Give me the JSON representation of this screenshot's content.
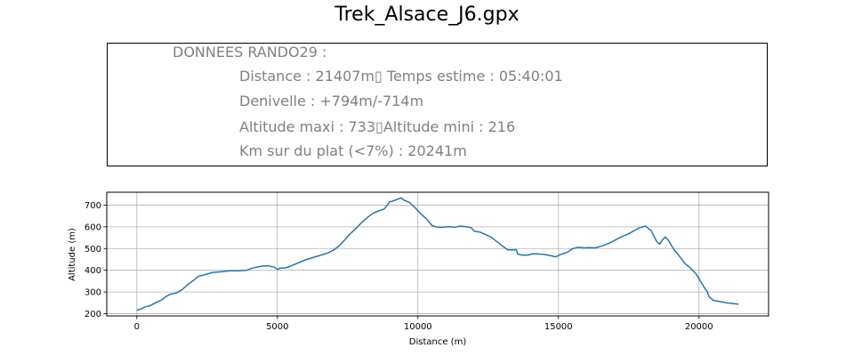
{
  "figure": {
    "title": "Trek_Alsace_J6.gpx"
  },
  "info_box": {
    "header": "DONNEES RANDO29  :",
    "line1": "Distance : 21407m▯ Temps estime : 05:40:01",
    "line2": "Denivelle : +794m/-714m",
    "line3": "Altitude maxi : 733▯Altitude mini : 216",
    "line4": "Km sur du plat (<7%) : 20241m"
  },
  "chart_data": {
    "type": "line",
    "title": "",
    "xlabel": "Distance (m)",
    "ylabel": "Altitude (m)",
    "xlim": [
      -1070,
      22477
    ],
    "ylim": [
      190,
      759
    ],
    "xticks": [
      0,
      5000,
      10000,
      15000,
      20000
    ],
    "yticks": [
      200,
      300,
      400,
      500,
      600,
      700
    ],
    "grid": true,
    "line_color": "#1f77b4",
    "series": [
      {
        "x": [
          0,
          150,
          300,
          450,
          600,
          750,
          900,
          1050,
          1200,
          1400,
          1600,
          1800,
          2000,
          2200,
          2300,
          2500,
          2700,
          3000,
          3300,
          3600,
          3900,
          4100,
          4300,
          4500,
          4700,
          4900,
          5000,
          5100,
          5300,
          5500,
          5700,
          6000,
          6300,
          6500,
          6800,
          7000,
          7200,
          7400,
          7600,
          7800,
          8000,
          8200,
          8400,
          8600,
          8800,
          9000,
          9100,
          9300,
          9400,
          9500,
          9700,
          9900,
          10100,
          10300,
          10500,
          10700,
          10900,
          11100,
          11300,
          11500,
          11700,
          11900,
          12000,
          12200,
          12400,
          12600,
          12800,
          13000,
          13200,
          13400,
          13500,
          13550,
          13700,
          13900,
          14100,
          14300,
          14500,
          14700,
          14900,
          15100,
          15300,
          15500,
          15700,
          15900,
          16100,
          16300,
          16500,
          16700,
          16900,
          17100,
          17300,
          17500,
          17700,
          17900,
          18100,
          18300,
          18400,
          18500,
          18600,
          18700,
          18800,
          18900,
          19000,
          19100,
          19300,
          19500,
          19700,
          19900,
          20100,
          20200,
          20300,
          20350,
          20500,
          20800,
          21000,
          21407
        ],
        "values": [
          216,
          222,
          232,
          236,
          246,
          256,
          265,
          280,
          290,
          295,
          310,
          333,
          352,
          373,
          376,
          383,
          390,
          393,
          398,
          398,
          400,
          410,
          415,
          420,
          420,
          414,
          404,
          410,
          411,
          421,
          432,
          448,
          460,
          468,
          480,
          493,
          513,
          540,
          569,
          593,
          620,
          643,
          662,
          673,
          682,
          715,
          718,
          728,
          733,
          723,
          712,
          688,
          660,
          637,
          606,
          598,
          598,
          601,
          598,
          603,
          601,
          596,
          580,
          576,
          565,
          553,
          533,
          512,
          494,
          494,
          495,
          475,
          470,
          470,
          476,
          475,
          473,
          468,
          462,
          474,
          482,
          499,
          506,
          503,
          504,
          503,
          510,
          519,
          530,
          545,
          557,
          568,
          583,
          597,
          603,
          582,
          556,
          532,
          520,
          540,
          553,
          540,
          519,
          497,
          466,
          432,
          410,
          383,
          340,
          318,
          300,
          280,
          262,
          255,
          250,
          244
        ]
      }
    ]
  }
}
